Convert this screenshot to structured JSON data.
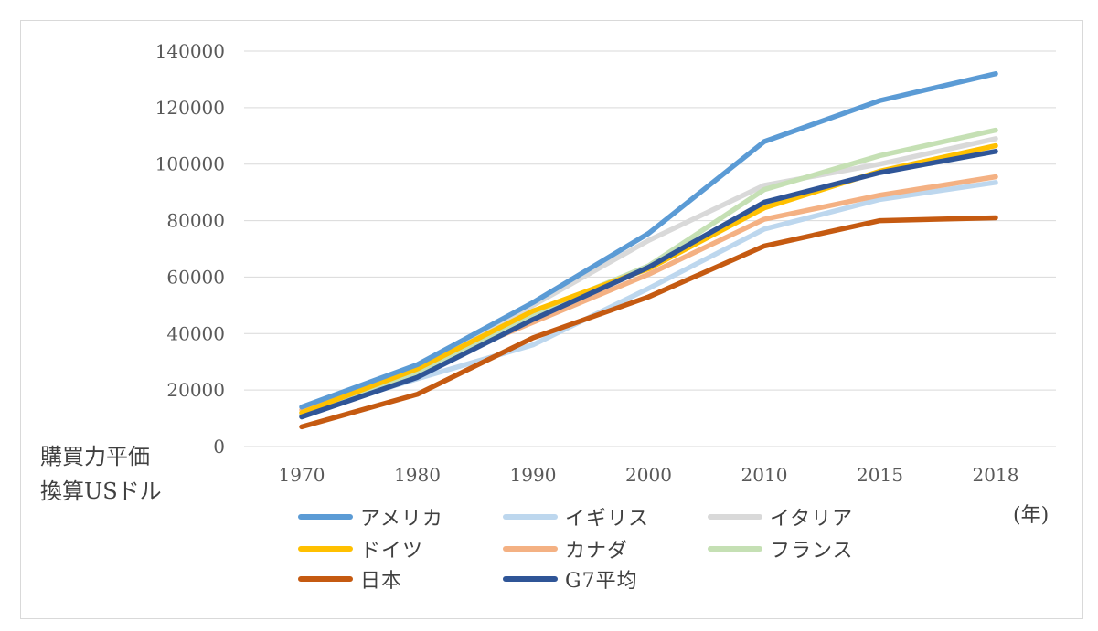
{
  "chart_data": {
    "type": "line",
    "categories": [
      "1970",
      "1980",
      "1990",
      "2000",
      "2010",
      "2015",
      "2018"
    ],
    "ylim": [
      0,
      140000
    ],
    "yticks": [
      0,
      20000,
      40000,
      60000,
      80000,
      100000,
      120000,
      140000
    ],
    "ylabel_lines": [
      "購買力平価",
      "換算USドル"
    ],
    "xunit": "(年)",
    "grid": true,
    "legend_position": "bottom",
    "series": [
      {
        "name": "イタリア",
        "color": "#d9d9d9",
        "values": [
          10500,
          26000,
          50000,
          73000,
          92500,
          100000,
          109000
        ]
      },
      {
        "name": "イギリス",
        "color": "#bdd7ee",
        "values": [
          11500,
          24000,
          36000,
          56000,
          77000,
          87500,
          93500
        ]
      },
      {
        "name": "カナダ",
        "color": "#f4b183",
        "values": [
          13000,
          27000,
          44000,
          61000,
          80500,
          89000,
          95500
        ]
      },
      {
        "name": "フランス",
        "color": "#c5e0b4",
        "values": [
          11000,
          26000,
          47000,
          64000,
          91000,
          103000,
          112000
        ]
      },
      {
        "name": "ドイツ",
        "color": "#ffc000",
        "values": [
          12000,
          27500,
          48000,
          63000,
          84500,
          97500,
          106500
        ]
      },
      {
        "name": "アメリカ",
        "color": "#5b9bd5",
        "values": [
          14000,
          29000,
          51000,
          75500,
          108000,
          122500,
          132000
        ]
      },
      {
        "name": "日本",
        "color": "#c55a11",
        "values": [
          7000,
          18500,
          38500,
          53000,
          71000,
          80000,
          81000
        ]
      },
      {
        "name": "G7平均",
        "color": "#2f5597",
        "values": [
          10500,
          24500,
          45000,
          63500,
          86500,
          97000,
          104500
        ]
      }
    ],
    "legend_order": [
      "アメリカ",
      "イギリス",
      "イタリア",
      "ドイツ",
      "カナダ",
      "フランス",
      "日本",
      "G7平均"
    ]
  }
}
